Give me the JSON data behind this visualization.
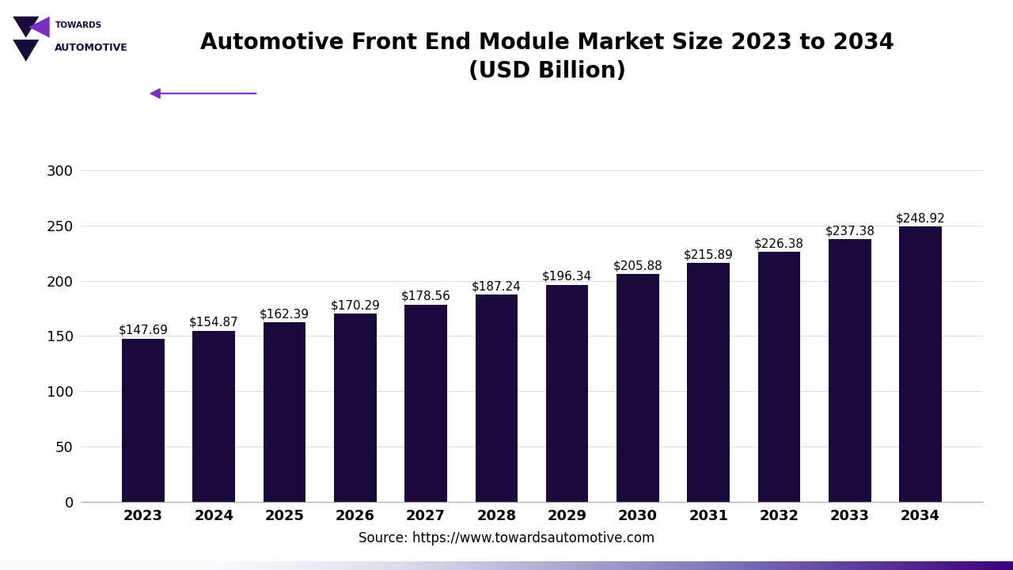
{
  "title_line1": "Automotive Front End Module Market Size 2023 to 2034",
  "title_line2": "(USD Billion)",
  "categories": [
    "2023",
    "2024",
    "2025",
    "2026",
    "2027",
    "2028",
    "2029",
    "2030",
    "2031",
    "2032",
    "2033",
    "2034"
  ],
  "values": [
    147.69,
    154.87,
    162.39,
    170.29,
    178.56,
    187.24,
    196.34,
    205.88,
    215.89,
    226.38,
    237.38,
    248.92
  ],
  "labels": [
    "$147.69",
    "$154.87",
    "$162.39",
    "$170.29",
    "$178.56",
    "$187.24",
    "$196.34",
    "$205.88",
    "$215.89",
    "$226.38",
    "$237.38",
    "$248.92"
  ],
  "bar_color": "#1a0a3c",
  "background_color": "#ffffff",
  "yticks": [
    0,
    50,
    100,
    150,
    200,
    250,
    300
  ],
  "ylim": [
    0,
    320
  ],
  "grid_color": "#dddddd",
  "source_text": "Source: https://www.towardsautomotive.com",
  "arrow_color": "#7b2fbe",
  "title_fontsize": 20,
  "label_fontsize": 11,
  "tick_fontsize": 13,
  "source_fontsize": 12
}
